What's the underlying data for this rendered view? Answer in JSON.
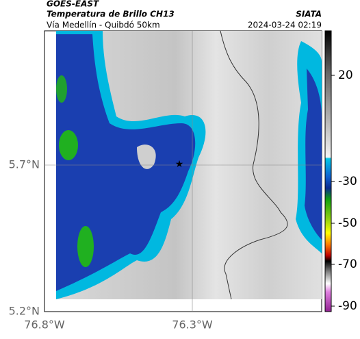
{
  "header": {
    "source": "GOES-EAST",
    "title": "Temperatura de Brillo CH13",
    "subtitle": "Vía Medellín - Quibdó 50km",
    "brand": "SIATA",
    "timestamp": "2024-03-24 02:19"
  },
  "map": {
    "lat_labels": [
      "5.7°N",
      "5.2°N"
    ],
    "lon_labels": [
      "76.8°W",
      "76.3°W"
    ],
    "colorbar": {
      "labels": [
        20,
        -30,
        -50,
        -70,
        -90
      ]
    }
  }
}
